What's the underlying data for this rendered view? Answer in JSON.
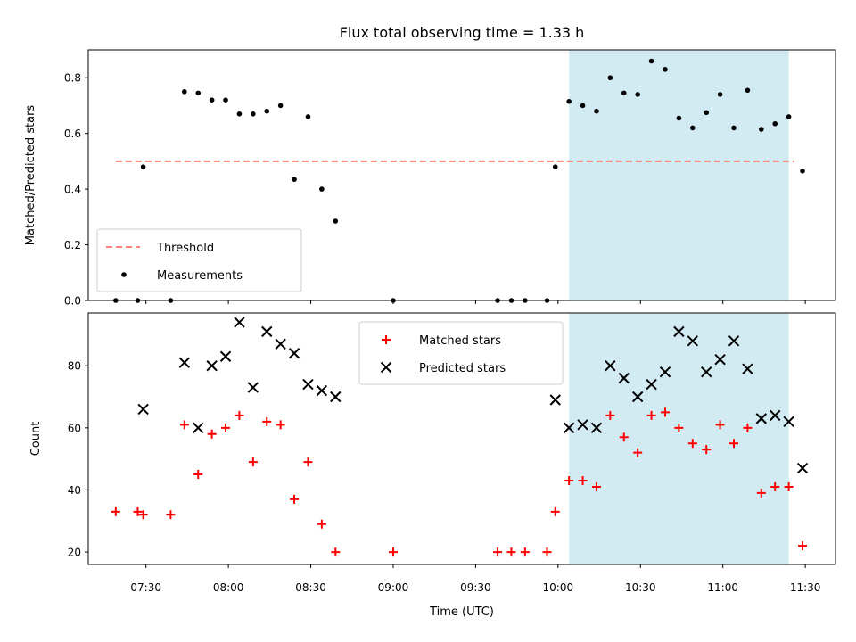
{
  "chart_data": {
    "title": "Flux total observing time = 1.33 h",
    "xlabel": "Time (UTC)",
    "xticks": [
      "07:30",
      "08:00",
      "08:30",
      "09:00",
      "09:30",
      "10:00",
      "10:30",
      "11:00",
      "11:30"
    ],
    "xlim": [
      "07:09",
      "11:41"
    ],
    "highlight_span": {
      "start": "10:04",
      "end": "11:24",
      "color": "#add8e6"
    },
    "panels": [
      {
        "type": "scatter",
        "ylabel": "Matched/Predicted stars",
        "ylim": [
          0.0,
          0.9
        ],
        "yticks": [
          "0.0",
          "0.2",
          "0.4",
          "0.6",
          "0.8"
        ],
        "legend_position": "lower-left",
        "threshold": {
          "name": "Threshold",
          "value": 0.5,
          "x_start": "07:19",
          "x_end": "11:26",
          "color": "#ff7f7f",
          "style": "dashed"
        },
        "series": [
          {
            "name": "Measurements",
            "marker": "dot",
            "color": "#000000",
            "points": [
              [
                "07:19",
                0.0
              ],
              [
                "07:27",
                0.0
              ],
              [
                "07:29",
                0.48
              ],
              [
                "07:39",
                0.0
              ],
              [
                "07:44",
                0.75
              ],
              [
                "07:49",
                0.745
              ],
              [
                "07:54",
                0.72
              ],
              [
                "07:59",
                0.72
              ],
              [
                "08:04",
                0.67
              ],
              [
                "08:09",
                0.67
              ],
              [
                "08:14",
                0.68
              ],
              [
                "08:19",
                0.7
              ],
              [
                "08:24",
                0.435
              ],
              [
                "08:29",
                0.66
              ],
              [
                "08:34",
                0.4
              ],
              [
                "08:39",
                0.285
              ],
              [
                "09:00",
                0.0
              ],
              [
                "09:38",
                0.0
              ],
              [
                "09:43",
                0.0
              ],
              [
                "09:48",
                0.0
              ],
              [
                "09:56",
                0.0
              ],
              [
                "09:59",
                0.48
              ],
              [
                "10:04",
                0.715
              ],
              [
                "10:09",
                0.7
              ],
              [
                "10:14",
                0.68
              ],
              [
                "10:19",
                0.8
              ],
              [
                "10:24",
                0.745
              ],
              [
                "10:29",
                0.74
              ],
              [
                "10:34",
                0.86
              ],
              [
                "10:39",
                0.83
              ],
              [
                "10:44",
                0.655
              ],
              [
                "10:49",
                0.62
              ],
              [
                "10:54",
                0.675
              ],
              [
                "10:59",
                0.74
              ],
              [
                "11:04",
                0.62
              ],
              [
                "11:09",
                0.755
              ],
              [
                "11:14",
                0.615
              ],
              [
                "11:19",
                0.635
              ],
              [
                "11:24",
                0.66
              ],
              [
                "11:29",
                0.465
              ]
            ]
          }
        ]
      },
      {
        "type": "scatter",
        "ylabel": "Count",
        "ylim": [
          16,
          97
        ],
        "yticks": [
          "20",
          "40",
          "60",
          "80"
        ],
        "legend_position": "top-center",
        "series": [
          {
            "name": "Matched stars",
            "marker": "plus",
            "color": "#ff0000",
            "points": [
              [
                "07:19",
                33
              ],
              [
                "07:27",
                33
              ],
              [
                "07:29",
                32
              ],
              [
                "07:39",
                32
              ],
              [
                "07:44",
                61
              ],
              [
                "07:49",
                45
              ],
              [
                "07:54",
                58
              ],
              [
                "07:59",
                60
              ],
              [
                "08:04",
                64
              ],
              [
                "08:09",
                49
              ],
              [
                "08:14",
                62
              ],
              [
                "08:19",
                61
              ],
              [
                "08:24",
                37
              ],
              [
                "08:29",
                49
              ],
              [
                "08:34",
                29
              ],
              [
                "08:39",
                20
              ],
              [
                "09:00",
                20
              ],
              [
                "09:38",
                20
              ],
              [
                "09:43",
                20
              ],
              [
                "09:48",
                20
              ],
              [
                "09:56",
                20
              ],
              [
                "09:59",
                33
              ],
              [
                "10:04",
                43
              ],
              [
                "10:09",
                43
              ],
              [
                "10:14",
                41
              ],
              [
                "10:19",
                64
              ],
              [
                "10:24",
                57
              ],
              [
                "10:29",
                52
              ],
              [
                "10:34",
                64
              ],
              [
                "10:39",
                65
              ],
              [
                "10:44",
                60
              ],
              [
                "10:49",
                55
              ],
              [
                "10:54",
                53
              ],
              [
                "10:59",
                61
              ],
              [
                "11:04",
                55
              ],
              [
                "11:09",
                60
              ],
              [
                "11:14",
                39
              ],
              [
                "11:19",
                41
              ],
              [
                "11:24",
                41
              ],
              [
                "11:29",
                22
              ]
            ]
          },
          {
            "name": "Predicted stars",
            "marker": "x",
            "color": "#000000",
            "points": [
              [
                "07:29",
                66
              ],
              [
                "07:44",
                81
              ],
              [
                "07:49",
                60
              ],
              [
                "07:54",
                80
              ],
              [
                "07:59",
                83
              ],
              [
                "08:04",
                94
              ],
              [
                "08:09",
                73
              ],
              [
                "08:14",
                91
              ],
              [
                "08:19",
                87
              ],
              [
                "08:24",
                84
              ],
              [
                "08:29",
                74
              ],
              [
                "08:34",
                72
              ],
              [
                "08:39",
                70
              ],
              [
                "09:59",
                69
              ],
              [
                "10:04",
                60
              ],
              [
                "10:09",
                61
              ],
              [
                "10:14",
                60
              ],
              [
                "10:19",
                80
              ],
              [
                "10:24",
                76
              ],
              [
                "10:29",
                70
              ],
              [
                "10:34",
                74
              ],
              [
                "10:39",
                78
              ],
              [
                "10:44",
                91
              ],
              [
                "10:49",
                88
              ],
              [
                "10:54",
                78
              ],
              [
                "10:59",
                82
              ],
              [
                "11:04",
                88
              ],
              [
                "11:09",
                79
              ],
              [
                "11:14",
                63
              ],
              [
                "11:19",
                64
              ],
              [
                "11:24",
                62
              ],
              [
                "11:29",
                47
              ]
            ]
          }
        ]
      }
    ]
  }
}
